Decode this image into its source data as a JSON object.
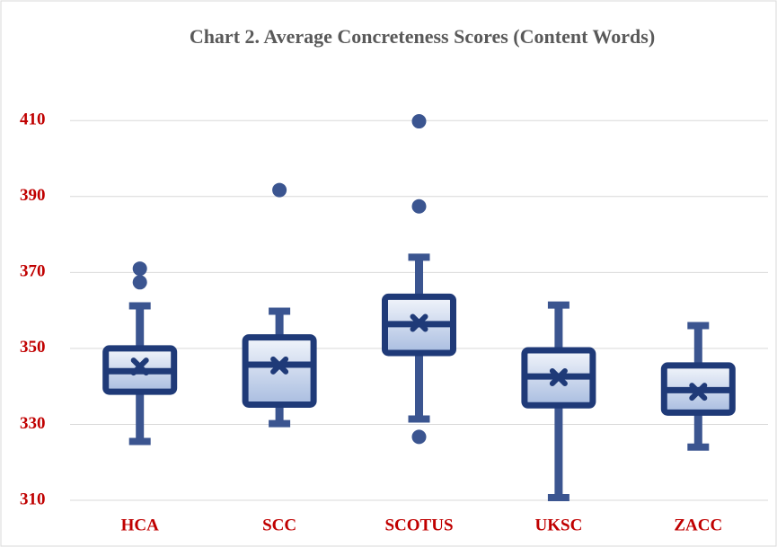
{
  "chart_data": {
    "type": "box",
    "title": "Chart 2. Average Concreteness Scores (Content Words)",
    "categories": [
      "HCA",
      "SCC",
      "SCOTUS",
      "UKSC",
      "ZACC"
    ],
    "series": [
      {
        "min": 325.5,
        "q1": 338.6,
        "median": 344,
        "q3": 350,
        "max": 361.2,
        "mean": 345.2,
        "outliers": [
          371,
          367.4
        ]
      },
      {
        "min": 330.2,
        "q1": 335.2,
        "median": 345.7,
        "q3": 352.9,
        "max": 359.8,
        "mean": 345.5,
        "outliers": [
          391.7
        ]
      },
      {
        "min": 331.4,
        "q1": 348.8,
        "median": 356.4,
        "q3": 363.6,
        "max": 374,
        "mean": 356.7,
        "outliers": [
          409.8,
          387.4,
          326.7
        ]
      },
      {
        "min": 310.7,
        "q1": 335,
        "median": 342.6,
        "q3": 349.5,
        "max": 361.4,
        "mean": 342.4,
        "outliers": []
      },
      {
        "min": 324,
        "q1": 333.1,
        "median": 339,
        "q3": 345.5,
        "max": 356,
        "mean": 338.6,
        "outliers": []
      }
    ],
    "box_color": "#1f3a78",
    "whisker_color": "#3b5590",
    "ylim": [
      310,
      424
    ],
    "yticks": [
      310,
      330,
      350,
      370,
      390,
      410
    ],
    "grid": true
  }
}
